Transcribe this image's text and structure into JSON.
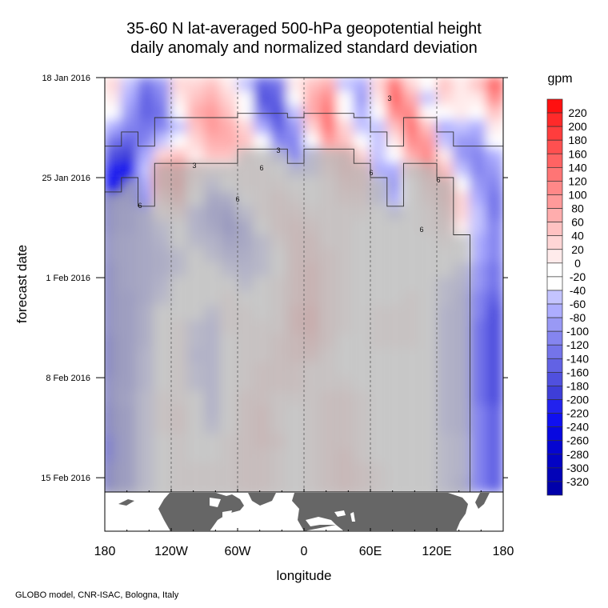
{
  "footer": "GLOBO model, CNR-ISAC, Bologna, Italy",
  "chart_data": {
    "type": "heatmap",
    "title": [
      "35-60 N lat-averaged 500-hPa geopotential height",
      "daily anomaly and normalized standard deviation"
    ],
    "xlabel": "longitude",
    "ylabel": "forecast date",
    "colorbar_label": "gpm",
    "xlim": [
      -180,
      180
    ],
    "x_ticks": [
      {
        "value": -180,
        "label": "180"
      },
      {
        "value": -120,
        "label": "120W"
      },
      {
        "value": -60,
        "label": "60W"
      },
      {
        "value": 0,
        "label": "0"
      },
      {
        "value": 60,
        "label": "60E"
      },
      {
        "value": 120,
        "label": "120E"
      },
      {
        "value": 180,
        "label": "180"
      }
    ],
    "y_ticks": [
      {
        "day": 0,
        "label": "18 Jan 2016"
      },
      {
        "day": 7,
        "label": "25 Jan 2016"
      },
      {
        "day": 14,
        "label": "1 Feb 2016"
      },
      {
        "day": 21,
        "label": "8 Feb 2016"
      },
      {
        "day": 28,
        "label": "15 Feb 2016"
      }
    ],
    "ylim_days": [
      0,
      29
    ],
    "colorbar_levels": [
      220,
      200,
      180,
      160,
      140,
      120,
      100,
      80,
      60,
      40,
      20,
      0,
      -20,
      -40,
      -60,
      -80,
      -100,
      -120,
      -140,
      -160,
      -180,
      -200,
      -220,
      -240,
      -260,
      -280,
      -300,
      -320
    ],
    "colorbar_colors": [
      "#ff1010",
      "#ff2a2a",
      "#ff3d3d",
      "#ff5050",
      "#ff6363",
      "#ff7575",
      "#ff8888",
      "#ff9a9a",
      "#ffadad",
      "#ffc2c2",
      "#ffd6d6",
      "#ffebeb",
      "#ffffff",
      "#ffffff",
      "#c4c4ff",
      "#adadff",
      "#9999f5",
      "#8585f0",
      "#7474ea",
      "#6262e4",
      "#5050de",
      "#3e3ed8",
      "#2222ee",
      "#1010f0",
      "#0808e0",
      "#0505d0",
      "#0303c4",
      "#0202b8",
      "#0000aa"
    ],
    "contours": [
      {
        "label": "3",
        "meaning": "normalized standard deviation 0.3"
      },
      {
        "label": "6",
        "meaning": "normalized standard deviation 0.6"
      }
    ],
    "grid_lon": [
      -172.5,
      -157.5,
      -142.5,
      -127.5,
      -112.5,
      -97.5,
      -82.5,
      -67.5,
      -52.5,
      -37.5,
      -22.5,
      -7.5,
      7.5,
      22.5,
      37.5,
      52.5,
      67.5,
      82.5,
      97.5,
      112.5,
      127.5,
      142.5,
      157.5,
      172.5
    ],
    "anomaly": [
      [
        40,
        -40,
        -120,
        -90,
        30,
        40,
        60,
        20,
        -40,
        -140,
        -120,
        20,
        60,
        80,
        -40,
        -60,
        30,
        140,
        40,
        -20,
        60,
        20,
        60,
        160
      ],
      [
        20,
        -60,
        -140,
        -100,
        20,
        60,
        80,
        40,
        -20,
        -160,
        -140,
        0,
        80,
        120,
        -20,
        -80,
        20,
        160,
        80,
        -40,
        40,
        20,
        20,
        120
      ],
      [
        -20,
        -80,
        -140,
        -120,
        -20,
        80,
        100,
        60,
        0,
        -120,
        -160,
        -40,
        80,
        140,
        0,
        -60,
        -20,
        120,
        120,
        0,
        -20,
        20,
        -20,
        60
      ],
      [
        -60,
        -100,
        -120,
        -100,
        -40,
        60,
        100,
        80,
        40,
        -60,
        -140,
        -80,
        40,
        140,
        40,
        -40,
        -40,
        60,
        140,
        60,
        -60,
        -40,
        -60,
        20
      ],
      [
        -120,
        -140,
        -100,
        -40,
        -20,
        40,
        80,
        80,
        60,
        -20,
        -100,
        -100,
        -20,
        100,
        60,
        0,
        -40,
        20,
        120,
        100,
        -40,
        -80,
        -80,
        -20
      ],
      [
        -160,
        -180,
        -60,
        40,
        60,
        20,
        60,
        60,
        40,
        0,
        -60,
        -100,
        -40,
        60,
        80,
        40,
        -40,
        -20,
        80,
        120,
        20,
        -80,
        -100,
        -60
      ],
      [
        -200,
        -220,
        -40,
        100,
        120,
        40,
        20,
        20,
        20,
        20,
        -20,
        -60,
        -40,
        40,
        80,
        60,
        -60,
        -60,
        40,
        100,
        60,
        -40,
        -100,
        -80
      ],
      [
        -220,
        -200,
        -60,
        100,
        140,
        20,
        -40,
        -20,
        20,
        20,
        20,
        -20,
        -20,
        20,
        60,
        60,
        -40,
        -80,
        0,
        60,
        80,
        0,
        -80,
        -100
      ],
      [
        -180,
        -160,
        -80,
        60,
        100,
        -20,
        -100,
        -80,
        0,
        20,
        40,
        20,
        0,
        20,
        40,
        40,
        -40,
        -60,
        0,
        40,
        80,
        40,
        -60,
        -120
      ],
      [
        -160,
        -140,
        -100,
        20,
        40,
        -60,
        -120,
        -140,
        -40,
        20,
        40,
        40,
        20,
        20,
        20,
        20,
        -20,
        -40,
        0,
        20,
        60,
        40,
        -40,
        -120
      ],
      [
        -160,
        -140,
        -100,
        -40,
        0,
        -60,
        -100,
        -160,
        -100,
        0,
        40,
        60,
        40,
        20,
        20,
        0,
        0,
        -20,
        0,
        20,
        40,
        20,
        -40,
        -100
      ],
      [
        -140,
        -120,
        -100,
        -60,
        -20,
        -40,
        -60,
        -120,
        -100,
        -40,
        20,
        60,
        60,
        20,
        20,
        0,
        0,
        0,
        0,
        0,
        20,
        0,
        -60,
        -100
      ],
      [
        -140,
        -120,
        -100,
        -80,
        -40,
        -20,
        -40,
        -80,
        -80,
        -40,
        0,
        60,
        60,
        40,
        20,
        0,
        0,
        0,
        0,
        0,
        0,
        -20,
        -60,
        -100
      ],
      [
        -160,
        -120,
        -100,
        -80,
        -40,
        -20,
        -20,
        -40,
        -60,
        -40,
        0,
        60,
        80,
        40,
        20,
        0,
        0,
        0,
        0,
        0,
        -20,
        -40,
        -80,
        -120
      ],
      [
        -160,
        -120,
        -100,
        -60,
        -20,
        -20,
        -20,
        -20,
        -40,
        -20,
        20,
        60,
        80,
        40,
        20,
        0,
        0,
        0,
        0,
        0,
        -40,
        -60,
        -80,
        -120
      ],
      [
        -160,
        -140,
        -100,
        -40,
        -20,
        -20,
        -20,
        20,
        0,
        0,
        20,
        60,
        80,
        40,
        20,
        0,
        0,
        0,
        20,
        0,
        -40,
        -80,
        -100,
        -140
      ],
      [
        -160,
        -140,
        -80,
        -20,
        0,
        -20,
        -40,
        20,
        20,
        0,
        20,
        80,
        100,
        40,
        20,
        0,
        20,
        20,
        20,
        0,
        -60,
        -80,
        -100,
        -160
      ],
      [
        -160,
        -140,
        -80,
        -20,
        20,
        -40,
        -60,
        20,
        20,
        20,
        20,
        80,
        100,
        40,
        20,
        0,
        20,
        20,
        20,
        0,
        -60,
        -80,
        -120,
        -160
      ],
      [
        -180,
        -140,
        -80,
        -20,
        20,
        -40,
        -60,
        0,
        20,
        20,
        40,
        60,
        80,
        40,
        0,
        0,
        20,
        20,
        20,
        0,
        -60,
        -80,
        -120,
        -160
      ],
      [
        -180,
        -140,
        -60,
        0,
        20,
        -60,
        -60,
        0,
        20,
        20,
        40,
        60,
        60,
        20,
        0,
        0,
        0,
        0,
        0,
        -20,
        -60,
        -80,
        -120,
        -160
      ],
      [
        -180,
        -140,
        -60,
        0,
        20,
        -40,
        -60,
        0,
        20,
        40,
        40,
        40,
        20,
        20,
        0,
        0,
        0,
        0,
        0,
        -20,
        -60,
        -80,
        -120,
        -160
      ],
      [
        -160,
        -140,
        -60,
        0,
        20,
        -40,
        -60,
        0,
        20,
        40,
        40,
        40,
        20,
        20,
        20,
        0,
        0,
        0,
        0,
        -20,
        -60,
        -80,
        -120,
        -160
      ],
      [
        -160,
        -120,
        -40,
        20,
        20,
        -20,
        -60,
        0,
        40,
        40,
        20,
        20,
        20,
        40,
        40,
        20,
        0,
        0,
        0,
        -20,
        -60,
        -80,
        -120,
        -160
      ],
      [
        -180,
        -140,
        -40,
        20,
        40,
        -20,
        -60,
        0,
        40,
        60,
        20,
        0,
        20,
        40,
        40,
        20,
        0,
        0,
        0,
        -20,
        -60,
        -80,
        -100,
        -140
      ],
      [
        -180,
        -140,
        -40,
        20,
        40,
        -20,
        -40,
        0,
        40,
        60,
        20,
        0,
        20,
        40,
        40,
        20,
        0,
        0,
        0,
        -20,
        -60,
        -80,
        -100,
        -140
      ],
      [
        -200,
        -140,
        -40,
        0,
        20,
        0,
        -20,
        20,
        40,
        60,
        40,
        0,
        20,
        40,
        40,
        20,
        0,
        0,
        0,
        -20,
        -40,
        -60,
        -100,
        -140
      ],
      [
        -200,
        -140,
        -40,
        0,
        20,
        0,
        0,
        20,
        40,
        40,
        20,
        0,
        20,
        40,
        60,
        20,
        0,
        0,
        0,
        -20,
        -40,
        -60,
        -100,
        -140
      ],
      [
        -180,
        -140,
        -40,
        0,
        20,
        20,
        20,
        20,
        40,
        40,
        20,
        0,
        20,
        40,
        60,
        40,
        20,
        0,
        0,
        -20,
        -40,
        -60,
        -100,
        -140
      ],
      [
        -180,
        -140,
        -40,
        0,
        20,
        20,
        20,
        20,
        40,
        40,
        20,
        0,
        20,
        40,
        60,
        40,
        20,
        0,
        0,
        -20,
        -40,
        -80,
        -100,
        -140
      ]
    ],
    "masked_above_0_6_start_row": [
      8,
      7,
      9,
      6,
      6,
      6,
      6,
      6,
      5,
      5,
      5,
      6,
      5,
      5,
      5,
      6,
      7,
      9,
      6,
      6,
      7,
      11,
      29,
      29
    ]
  }
}
